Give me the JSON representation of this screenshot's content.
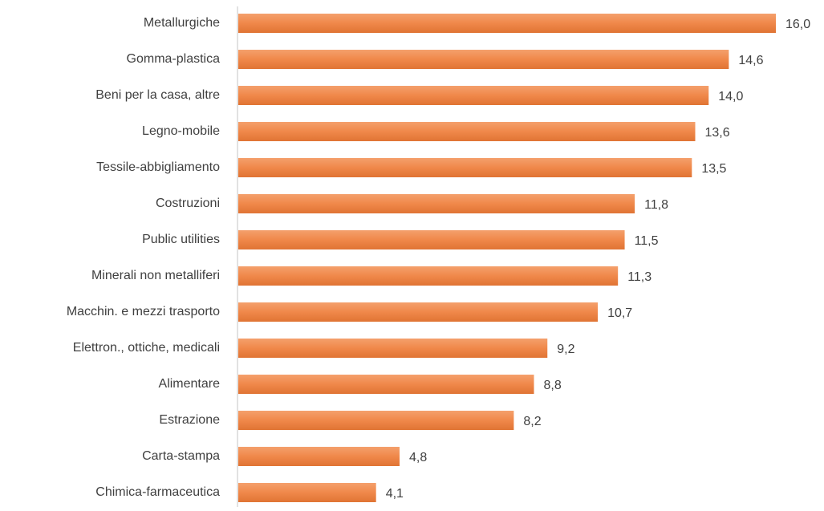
{
  "chart_data": {
    "type": "bar",
    "orientation": "horizontal",
    "color": "#f0884a",
    "categories": [
      "Metallurgiche",
      "Gomma-plastica",
      "Beni per la casa, altre",
      "Legno-mobile",
      "Tessile-abbigliamento",
      "Costruzioni",
      "Public utilities",
      "Minerali non metalliferi",
      "Macchin. e mezzi trasporto",
      "Elettron., ottiche, medicali",
      "Alimentare",
      "Estrazione",
      "Carta-stampa",
      "Chimica-farmaceutica"
    ],
    "values": [
      16.0,
      14.6,
      14.0,
      13.6,
      13.5,
      11.8,
      11.5,
      11.3,
      10.7,
      9.2,
      8.8,
      8.2,
      4.8,
      4.1
    ],
    "value_labels": [
      "16,0",
      "14,6",
      "14,0",
      "13,6",
      "13,5",
      "11,8",
      "11,5",
      "11,3",
      "10,7",
      "9,2",
      "8,8",
      "8,2",
      "4,8",
      "4,1"
    ]
  }
}
